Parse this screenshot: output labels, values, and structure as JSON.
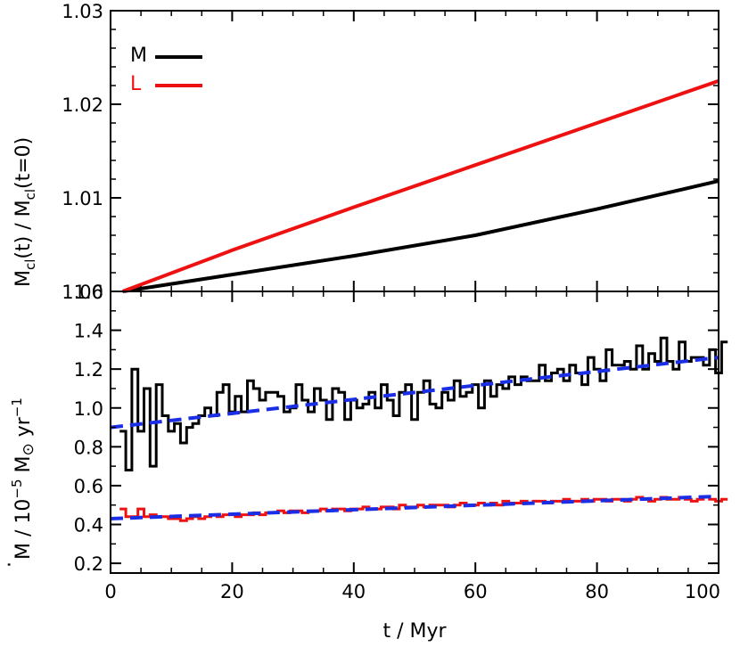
{
  "chart_data": [
    {
      "type": "line",
      "panel": "top",
      "ylabel": "M_cl(t) / M_cl(t=0)",
      "ylabel_parts": {
        "a": "M",
        "b": "cl",
        "c": "(t) / M",
        "d": "cl",
        "e": "(t=0)"
      },
      "ylim": [
        1.0,
        1.03
      ],
      "yticks": [
        "1.00",
        "1.01",
        "1.02",
        "1.03"
      ],
      "ytick_values": [
        1.0,
        1.01,
        1.02,
        1.03
      ],
      "xlim": [
        0,
        100
      ],
      "grid": false,
      "legend": {
        "placement": "top-left"
      },
      "series": [
        {
          "name": "M",
          "color": "#000000",
          "x": [
            2,
            20,
            40,
            60,
            80,
            100
          ],
          "y": [
            1.0,
            1.0018,
            1.0038,
            1.006,
            1.0088,
            1.0118
          ]
        },
        {
          "name": "L",
          "color": "#ee1111",
          "x": [
            2,
            20,
            40,
            60,
            80,
            100
          ],
          "y": [
            1.0,
            1.0044,
            1.009,
            1.0135,
            1.018,
            1.0225
          ]
        }
      ]
    },
    {
      "type": "line",
      "panel": "bottom",
      "ylabel": "Ṁ / 10^-5 M⊙ yr^-1",
      "ylabel_parts": {
        "a": "M",
        "b": " / 10",
        "c": "−5",
        "d": " M",
        "e": " yr",
        "f": "−1",
        "dot": "·"
      },
      "xlabel": "t / Myr",
      "xlim": [
        0,
        100
      ],
      "xticks": [
        "0",
        "20",
        "40",
        "60",
        "80",
        "100"
      ],
      "xtick_values": [
        0,
        20,
        40,
        60,
        80,
        100
      ],
      "ylim": [
        0.15,
        1.6
      ],
      "yticks": [
        "0.2",
        "0.4",
        "0.6",
        "0.8",
        "1.0",
        "1.2",
        "1.4",
        "1.6"
      ],
      "ytick_values": [
        0.2,
        0.4,
        0.6,
        0.8,
        1.0,
        1.2,
        1.4,
        1.6
      ],
      "grid": false,
      "series": [
        {
          "name": "",
          "style": "step",
          "color": "#000000",
          "x_start": 1.5,
          "bin_width": 1,
          "values": [
            0.88,
            0.68,
            1.2,
            0.88,
            1.1,
            0.7,
            1.12,
            0.96,
            0.88,
            0.92,
            0.82,
            0.9,
            0.92,
            0.96,
            1.0,
            0.96,
            1.08,
            1.12,
            0.98,
            1.06,
            0.98,
            1.14,
            1.1,
            1.04,
            1.08,
            1.08,
            1.06,
            0.98,
            1.0,
            1.12,
            1.04,
            0.98,
            1.1,
            1.04,
            0.94,
            1.1,
            1.08,
            0.94,
            1.04,
            1.0,
            1.02,
            1.08,
            1.0,
            1.12,
            1.04,
            0.96,
            1.08,
            1.12,
            0.94,
            1.08,
            1.14,
            1.02,
            1.0,
            1.08,
            1.04,
            1.14,
            1.06,
            1.08,
            1.12,
            1.0,
            1.14,
            1.06,
            1.12,
            1.1,
            1.16,
            1.12,
            1.16,
            1.14,
            1.14,
            1.22,
            1.14,
            1.18,
            1.2,
            1.14,
            1.22,
            1.18,
            1.12,
            1.26,
            1.2,
            1.14,
            1.3,
            1.22,
            1.22,
            1.24,
            1.2,
            1.32,
            1.2,
            1.28,
            1.24,
            1.36,
            1.24,
            1.2,
            1.34,
            1.24,
            1.26,
            1.26,
            1.22,
            1.3,
            1.18,
            1.34
          ]
        },
        {
          "name": "",
          "style": "step",
          "color": "#ee1111",
          "x_start": 1.5,
          "bin_width": 1,
          "values": [
            0.48,
            0.44,
            0.44,
            0.48,
            0.44,
            0.45,
            0.44,
            0.44,
            0.43,
            0.43,
            0.42,
            0.43,
            0.44,
            0.43,
            0.44,
            0.45,
            0.44,
            0.45,
            0.45,
            0.44,
            0.45,
            0.45,
            0.46,
            0.45,
            0.46,
            0.46,
            0.47,
            0.46,
            0.47,
            0.47,
            0.46,
            0.47,
            0.47,
            0.48,
            0.47,
            0.48,
            0.48,
            0.47,
            0.48,
            0.48,
            0.49,
            0.48,
            0.48,
            0.49,
            0.49,
            0.48,
            0.5,
            0.49,
            0.49,
            0.5,
            0.49,
            0.5,
            0.5,
            0.5,
            0.49,
            0.5,
            0.51,
            0.5,
            0.5,
            0.51,
            0.5,
            0.51,
            0.5,
            0.52,
            0.51,
            0.51,
            0.52,
            0.51,
            0.52,
            0.52,
            0.51,
            0.52,
            0.52,
            0.53,
            0.52,
            0.52,
            0.53,
            0.52,
            0.53,
            0.53,
            0.52,
            0.53,
            0.53,
            0.52,
            0.53,
            0.54,
            0.53,
            0.52,
            0.53,
            0.54,
            0.53,
            0.53,
            0.54,
            0.53,
            0.52,
            0.53,
            0.54,
            0.53,
            0.52,
            0.53
          ]
        },
        {
          "name": "",
          "style": "dashed",
          "color": "#1a2ee6",
          "x": [
            0,
            100
          ],
          "y": [
            0.9,
            1.26
          ]
        },
        {
          "name": "",
          "style": "dashed",
          "color": "#1a2ee6",
          "x": [
            0,
            100
          ],
          "y": [
            0.43,
            0.545
          ]
        }
      ]
    }
  ]
}
